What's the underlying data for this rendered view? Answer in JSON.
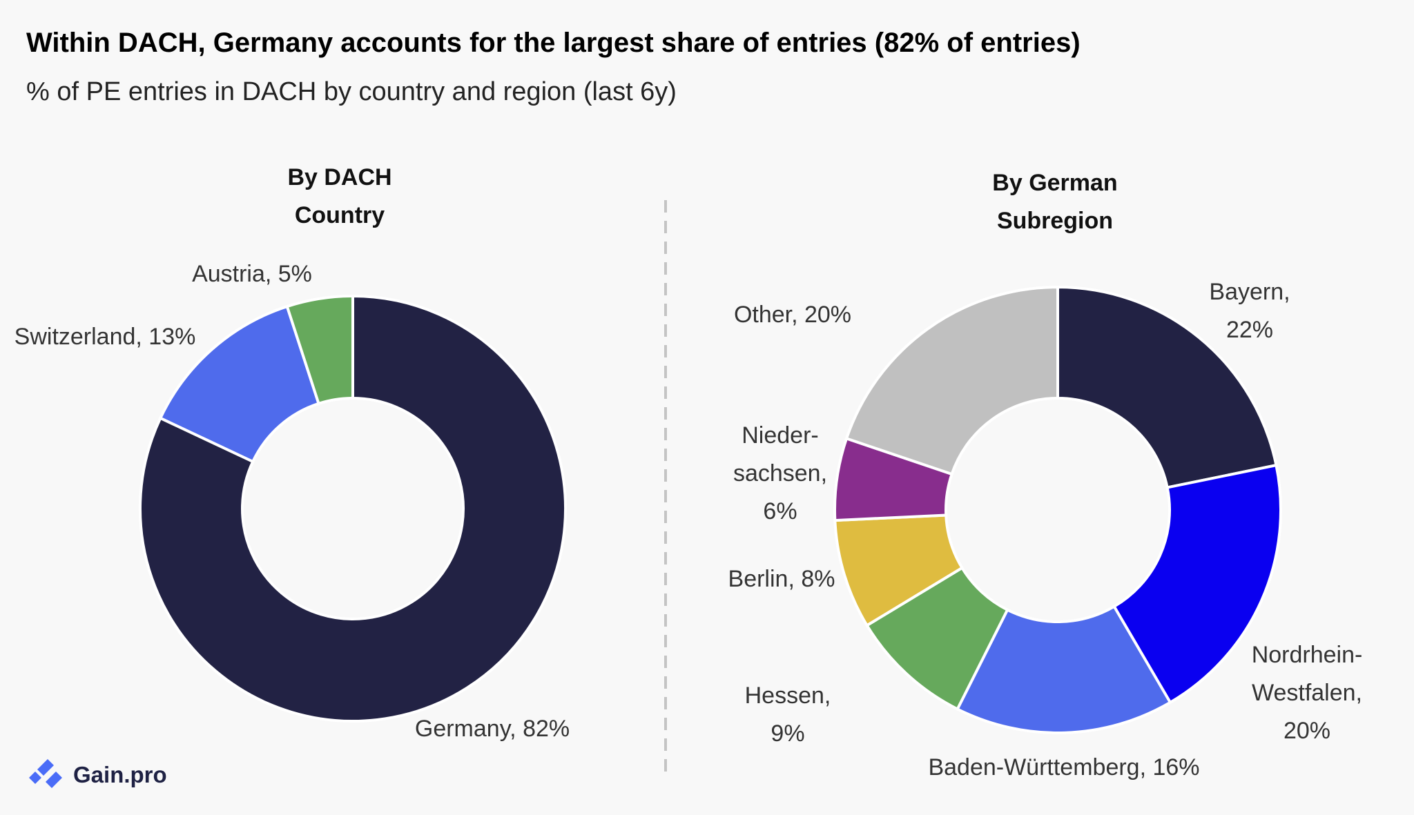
{
  "header": {
    "title": "Within DACH, Germany accounts for the largest share of entries (82% of entries)",
    "subtitle": "% of PE entries in DACH by country and region (last 6y)"
  },
  "brand": {
    "name": "Gain.pro",
    "icon": "gain-pro-logo-icon",
    "color": "#4a6cf7"
  },
  "chart_data": [
    {
      "type": "pie",
      "donut": true,
      "title": "By DACH Country",
      "title_lines": [
        "By DACH",
        "Country"
      ],
      "slices": [
        {
          "name": "Germany",
          "value": 82,
          "label_lines": [
            "Germany, 82%"
          ],
          "color": "#222244"
        },
        {
          "name": "Switzerland",
          "value": 13,
          "label_lines": [
            "Switzerland, 13%"
          ],
          "color": "#4f6bec"
        },
        {
          "name": "Austria",
          "value": 5,
          "label_lines": [
            "Austria, 5%"
          ],
          "color": "#66a95c"
        }
      ]
    },
    {
      "type": "pie",
      "donut": true,
      "title": "By German Subregion",
      "title_lines": [
        "By German",
        "Subregion"
      ],
      "slices": [
        {
          "name": "Bayern",
          "value": 22,
          "label_lines": [
            "Bayern,",
            "22%"
          ],
          "color": "#222244"
        },
        {
          "name": "Nordrhein-Westfalen",
          "value": 20,
          "label_lines": [
            "Nordrhein-",
            "Westfalen,",
            "20%"
          ],
          "color": "#0a00f0"
        },
        {
          "name": "Baden-Württemberg",
          "value": 16,
          "label_lines": [
            "Baden-Württemberg, 16%"
          ],
          "color": "#4f6bec"
        },
        {
          "name": "Hessen",
          "value": 9,
          "label_lines": [
            "Hessen,",
            "9%"
          ],
          "color": "#66a95c"
        },
        {
          "name": "Berlin",
          "value": 8,
          "label_lines": [
            "Berlin, 8%"
          ],
          "color": "#dfbc40"
        },
        {
          "name": "Niedersachsen",
          "value": 6,
          "label_lines": [
            "Nieder-",
            "sachsen,",
            "6%"
          ],
          "color": "#882d8d"
        },
        {
          "name": "Other",
          "value": 20,
          "label_lines": [
            "Other, 20%"
          ],
          "color": "#c0c0c0"
        }
      ]
    }
  ]
}
